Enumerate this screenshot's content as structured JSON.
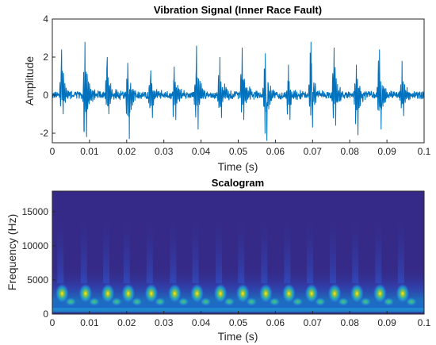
{
  "chart_data": [
    {
      "type": "line",
      "title": "Vibration Signal (Inner Race Fault)",
      "xlabel": "Time (s)",
      "ylabel": "Amplitude",
      "xlim": [
        0,
        0.1
      ],
      "ylim": [
        -2.5,
        4
      ],
      "xticks": [
        "0",
        "0.01",
        "0.02",
        "0.03",
        "0.04",
        "0.05",
        "0.06",
        "0.07",
        "0.08",
        "0.09",
        "0.1"
      ],
      "yticks": [
        "-2",
        "0",
        "2",
        "4"
      ],
      "grid": false,
      "series_color": "#0072BD",
      "series": [
        {
          "impulse_times": [
            0.0022,
            0.0085,
            0.0145,
            0.02,
            0.0262,
            0.0325,
            0.0385,
            0.0448,
            0.0508,
            0.057,
            0.0632,
            0.0693,
            0.0755,
            0.0815,
            0.0877,
            0.0938
          ],
          "impulse_peaks": [
            2.4,
            2.8,
            2.0,
            1.7,
            1.3,
            1.5,
            2.6,
            2.0,
            2.5,
            2.2,
            1.6,
            2.8,
            2.5,
            1.6,
            2.4,
            1.8
          ],
          "impulse_troughs": [
            -1.0,
            -2.2,
            -1.0,
            -2.3,
            -1.2,
            -1.3,
            -1.8,
            -1.2,
            -1.3,
            -2.4,
            -1.3,
            -1.7,
            -1.6,
            -2.1,
            -1.8,
            -1.1
          ],
          "noise_amplitude": 0.35
        }
      ]
    },
    {
      "type": "heatmap",
      "title": "Scalogram",
      "xlabel": "Time (s)",
      "ylabel": "Frequency (Hz)",
      "xlim": [
        0,
        0.1
      ],
      "ylim": [
        0,
        18000
      ],
      "xticks": [
        "0",
        "0.01",
        "0.02",
        "0.03",
        "0.04",
        "0.05",
        "0.06",
        "0.07",
        "0.08",
        "0.09",
        "0.1"
      ],
      "yticks": [
        "0",
        "5000",
        "10000",
        "15000"
      ],
      "colormap": "parula",
      "background_color": "#352A87",
      "energy_band_hz": [
        500,
        4500
      ],
      "peak_frequency_hz": 3000,
      "hotspot_times": [
        0.0022,
        0.0085,
        0.0145,
        0.02,
        0.0262,
        0.0325,
        0.0385,
        0.0448,
        0.0508,
        0.057,
        0.0632,
        0.0693,
        0.0755,
        0.0815,
        0.0877,
        0.0938
      ]
    }
  ]
}
